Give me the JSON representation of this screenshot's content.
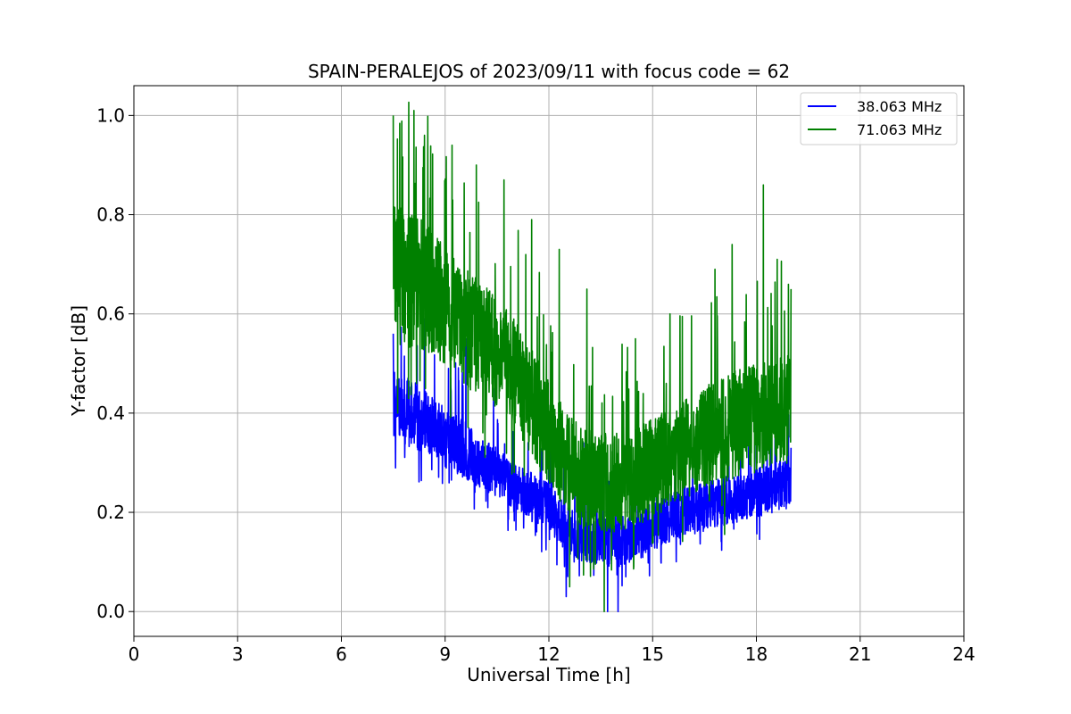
{
  "chart_data": {
    "type": "line",
    "title": "SPAIN-PERALEJOS of 2023/09/11 with focus code = 62",
    "xlabel": "Universal Time [h]",
    "ylabel": "Y-factor [dB]",
    "xlim": [
      0,
      24
    ],
    "ylim": [
      -0.05,
      1.06
    ],
    "xticks": [
      0,
      3,
      6,
      9,
      12,
      15,
      18,
      21,
      24
    ],
    "xtick_labels": [
      "0",
      "3",
      "6",
      "9",
      "12",
      "15",
      "18",
      "21",
      "24"
    ],
    "yticks": [
      0.0,
      0.2,
      0.4,
      0.6,
      0.8,
      1.0
    ],
    "ytick_labels": [
      "0.0",
      "0.2",
      "0.4",
      "0.6",
      "0.8",
      "1.0"
    ],
    "grid": true,
    "legend_position": "top-right",
    "series": [
      {
        "name": "38.063 MHz",
        "color": "#0000ff",
        "x": [
          7.5,
          8.0,
          8.5,
          9.0,
          9.5,
          10.0,
          10.5,
          11.0,
          11.5,
          12.0,
          12.5,
          13.0,
          13.5,
          14.0,
          14.5,
          15.0,
          15.5,
          16.0,
          16.5,
          17.0,
          17.5,
          18.0,
          18.5,
          19.0
        ],
        "center": [
          0.42,
          0.4,
          0.38,
          0.35,
          0.33,
          0.3,
          0.28,
          0.25,
          0.23,
          0.21,
          0.17,
          0.15,
          0.14,
          0.14,
          0.15,
          0.17,
          0.19,
          0.2,
          0.21,
          0.22,
          0.23,
          0.24,
          0.25,
          0.26
        ],
        "spread": [
          0.07,
          0.07,
          0.06,
          0.06,
          0.06,
          0.05,
          0.05,
          0.05,
          0.05,
          0.05,
          0.05,
          0.05,
          0.05,
          0.05,
          0.05,
          0.05,
          0.05,
          0.05,
          0.05,
          0.05,
          0.05,
          0.05,
          0.05,
          0.05
        ],
        "spikes": [
          [
            7.5,
            0.56
          ],
          [
            8.4,
            0.59
          ],
          [
            9.6,
            0.55
          ],
          [
            10.4,
            0.45
          ],
          [
            12.0,
            0.36
          ],
          [
            13.0,
            0.34
          ],
          [
            14.0,
            0.0
          ],
          [
            13.7,
            0.0
          ],
          [
            12.5,
            0.03
          ],
          [
            17.2,
            0.36
          ],
          [
            18.4,
            0.33
          ],
          [
            19.0,
            0.33
          ]
        ]
      },
      {
        "name": "71.063 MHz",
        "color": "#008000",
        "x": [
          7.5,
          8.0,
          8.5,
          9.0,
          9.5,
          10.0,
          10.5,
          11.0,
          11.5,
          12.0,
          12.5,
          13.0,
          13.5,
          14.0,
          14.5,
          15.0,
          15.5,
          16.0,
          16.5,
          17.0,
          17.5,
          18.0,
          18.5,
          19.0
        ],
        "center": [
          0.68,
          0.67,
          0.65,
          0.62,
          0.58,
          0.55,
          0.52,
          0.48,
          0.42,
          0.36,
          0.3,
          0.27,
          0.26,
          0.26,
          0.27,
          0.29,
          0.31,
          0.33,
          0.35,
          0.37,
          0.38,
          0.39,
          0.4,
          0.41
        ],
        "spread": [
          0.14,
          0.14,
          0.13,
          0.12,
          0.12,
          0.12,
          0.11,
          0.11,
          0.11,
          0.11,
          0.1,
          0.1,
          0.1,
          0.1,
          0.1,
          0.1,
          0.1,
          0.1,
          0.1,
          0.11,
          0.11,
          0.11,
          0.11,
          0.11
        ],
        "spikes": [
          [
            7.5,
            1.0
          ],
          [
            8.1,
            1.01
          ],
          [
            8.4,
            0.96
          ],
          [
            9.2,
            0.94
          ],
          [
            9.9,
            0.9
          ],
          [
            10.7,
            0.87
          ],
          [
            11.5,
            0.79
          ],
          [
            12.3,
            0.73
          ],
          [
            13.1,
            0.65
          ],
          [
            14.5,
            0.55
          ],
          [
            15.5,
            0.6
          ],
          [
            16.8,
            0.69
          ],
          [
            17.3,
            0.74
          ],
          [
            18.2,
            0.86
          ],
          [
            18.6,
            0.71
          ],
          [
            19.0,
            0.65
          ],
          [
            13.6,
            0.0
          ],
          [
            12.6,
            0.05
          ]
        ]
      }
    ]
  }
}
